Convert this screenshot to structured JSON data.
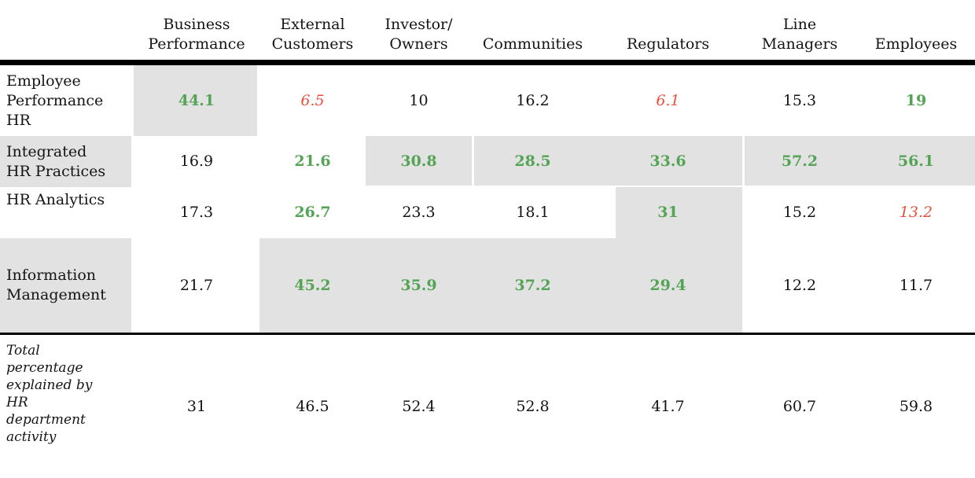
{
  "colors": {
    "green": "#55a456",
    "red": "#e5523d",
    "gray_bg": "#e2e2e2",
    "rule": "#000000",
    "text": "#141414"
  },
  "table": {
    "column_headers": [
      "Business\nPerformance",
      "External\nCustomers",
      "Investor/\nOwners",
      "Communities",
      "Regulators",
      "Line\nManagers",
      "Employees"
    ],
    "rows": [
      {
        "label": "Employee\nPerformance\nHR",
        "label_gray": false,
        "cells": [
          {
            "value": "44.1",
            "color": "green",
            "highlight": true
          },
          {
            "value": "6.5",
            "color": "red",
            "highlight": false
          },
          {
            "value": "10",
            "color": "black",
            "highlight": false
          },
          {
            "value": "16.2",
            "color": "black",
            "highlight": false
          },
          {
            "value": "6.1",
            "color": "red",
            "highlight": false
          },
          {
            "value": "15.3",
            "color": "black",
            "highlight": false
          },
          {
            "value": "19",
            "color": "green",
            "highlight": false
          }
        ]
      },
      {
        "label": "Integrated\nHR Practices",
        "label_gray": true,
        "cells": [
          {
            "value": "16.9",
            "color": "black",
            "highlight": false
          },
          {
            "value": "21.6",
            "color": "green",
            "highlight": false
          },
          {
            "value": "30.8",
            "color": "green",
            "highlight": true
          },
          {
            "value": "28.5",
            "color": "green",
            "highlight": true
          },
          {
            "value": "33.6",
            "color": "green",
            "highlight": true
          },
          {
            "value": "57.2",
            "color": "green",
            "highlight": true
          },
          {
            "value": "56.1",
            "color": "green",
            "highlight": true
          }
        ]
      },
      {
        "label": "HR Analytics",
        "label_gray": false,
        "cells": [
          {
            "value": "17.3",
            "color": "black",
            "highlight": false
          },
          {
            "value": "26.7",
            "color": "green",
            "highlight": false
          },
          {
            "value": "23.3",
            "color": "black",
            "highlight": false
          },
          {
            "value": "18.1",
            "color": "black",
            "highlight": false
          },
          {
            "value": "31",
            "color": "green",
            "highlight": true
          },
          {
            "value": "15.2",
            "color": "black",
            "highlight": false
          },
          {
            "value": "13.2",
            "color": "red",
            "highlight": false
          }
        ]
      },
      {
        "label": "Information\nManagement",
        "label_gray": true,
        "cells": [
          {
            "value": "21.7",
            "color": "black",
            "highlight": false
          },
          {
            "value": "45.2",
            "color": "green",
            "highlight": true
          },
          {
            "value": "35.9",
            "color": "green",
            "highlight": true
          },
          {
            "value": "37.2",
            "color": "green",
            "highlight": true
          },
          {
            "value": "29.4",
            "color": "green",
            "highlight": true
          },
          {
            "value": "12.2",
            "color": "black",
            "highlight": false
          },
          {
            "value": "11.7",
            "color": "black",
            "highlight": false
          }
        ]
      }
    ],
    "total_row": {
      "label": "Total\npercentage\nexplained by\nHR\ndepartment\nactivity",
      "cells": [
        {
          "value": "31",
          "color": "black",
          "highlight": false
        },
        {
          "value": "46.5",
          "color": "black",
          "highlight": false
        },
        {
          "value": "52.4",
          "color": "black",
          "highlight": false
        },
        {
          "value": "52.8",
          "color": "black",
          "highlight": false
        },
        {
          "value": "41.7",
          "color": "black",
          "highlight": false
        },
        {
          "value": "60.7",
          "color": "black",
          "highlight": false
        },
        {
          "value": "59.8",
          "color": "black",
          "highlight": false
        }
      ]
    }
  },
  "chart_data": {
    "type": "table",
    "columns": [
      "Business Performance",
      "External Customers",
      "Investor/Owners",
      "Communities",
      "Regulators",
      "Line Managers",
      "Employees"
    ],
    "rows": [
      {
        "name": "Employee Performance HR",
        "values": [
          44.1,
          6.5,
          10,
          16.2,
          6.1,
          15.3,
          19
        ]
      },
      {
        "name": "Integrated HR Practices",
        "values": [
          16.9,
          21.6,
          30.8,
          28.5,
          33.6,
          57.2,
          56.1
        ]
      },
      {
        "name": "HR Analytics",
        "values": [
          17.3,
          26.7,
          23.3,
          18.1,
          31,
          15.2,
          13.2
        ]
      },
      {
        "name": "Information Management",
        "values": [
          21.7,
          45.2,
          35.9,
          37.2,
          29.4,
          12.2,
          11.7
        ]
      },
      {
        "name": "Total percentage explained by HR department activity",
        "values": [
          31,
          46.5,
          52.4,
          52.8,
          41.7,
          60.7,
          59.8
        ]
      }
    ]
  }
}
